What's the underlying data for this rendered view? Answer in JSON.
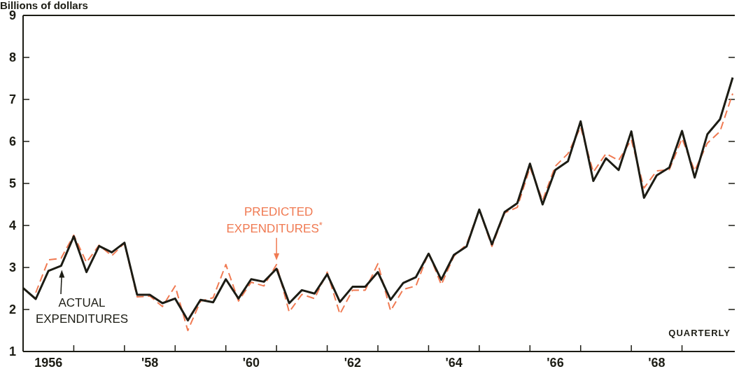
{
  "chart_data": {
    "type": "line",
    "ylabel": "Billions of dollars",
    "categories": [
      null,
      null,
      "1956",
      null,
      null,
      null,
      null,
      null,
      null,
      null,
      "'58",
      null,
      null,
      null,
      null,
      null,
      null,
      null,
      "'60",
      null,
      null,
      null,
      null,
      null,
      null,
      null,
      "'62",
      null,
      null,
      null,
      null,
      null,
      null,
      null,
      "'64",
      null,
      null,
      null,
      null,
      null,
      null,
      null,
      "'66",
      null,
      null,
      null,
      null,
      null,
      null,
      null,
      "'68",
      null,
      null,
      null,
      null,
      null,
      null
    ],
    "series": [
      {
        "name": "PREDICTED EXPENDITURES$^{*}$",
        "color": "#f07a52",
        "line_style": "dashed",
        "values": [
          null,
          2.4,
          3.18,
          3.22,
          3.77,
          3.12,
          3.53,
          3.28,
          3.58,
          2.3,
          2.32,
          2.07,
          2.56,
          1.5,
          2.2,
          2.28,
          3.07,
          2.2,
          2.65,
          2.56,
          3.07,
          1.94,
          2.36,
          2.26,
          2.89,
          1.89,
          2.46,
          2.46,
          3.09,
          1.97,
          2.48,
          2.56,
          3.35,
          2.59,
          3.27,
          3.55,
          4.38,
          3.5,
          4.3,
          4.43,
          5.38,
          4.6,
          5.41,
          5.71,
          6.34,
          5.27,
          5.71,
          5.55,
          6.04,
          4.89,
          5.3,
          5.33,
          6.07,
          5.3,
          5.96,
          6.24,
          7.14
        ]
      },
      {
        "name": "ACTUAL EXPENDITURES",
        "color": "#1c1c14",
        "line_style": "solid",
        "values": [
          2.51,
          2.25,
          2.92,
          3.04,
          3.74,
          2.89,
          3.51,
          3.36,
          3.59,
          2.35,
          2.35,
          2.15,
          2.26,
          1.74,
          2.23,
          2.17,
          2.72,
          2.26,
          2.72,
          2.66,
          2.97,
          2.15,
          2.46,
          2.38,
          2.84,
          2.18,
          2.54,
          2.54,
          2.89,
          2.23,
          2.63,
          2.77,
          3.33,
          2.71,
          3.3,
          3.5,
          4.38,
          3.55,
          4.32,
          4.53,
          5.47,
          4.5,
          5.32,
          5.53,
          6.48,
          5.06,
          5.6,
          5.32,
          6.24,
          4.66,
          5.19,
          5.38,
          6.25,
          5.14,
          6.17,
          6.53,
          7.52
        ]
      }
    ],
    "ylim": [
      1,
      9
    ],
    "yticks": [
      1,
      2,
      3,
      4,
      5,
      6,
      7,
      8,
      9
    ],
    "annotations": [
      "QUARTERLY"
    ],
    "grid": false,
    "legend": "bottom left",
    "marker": "none"
  }
}
